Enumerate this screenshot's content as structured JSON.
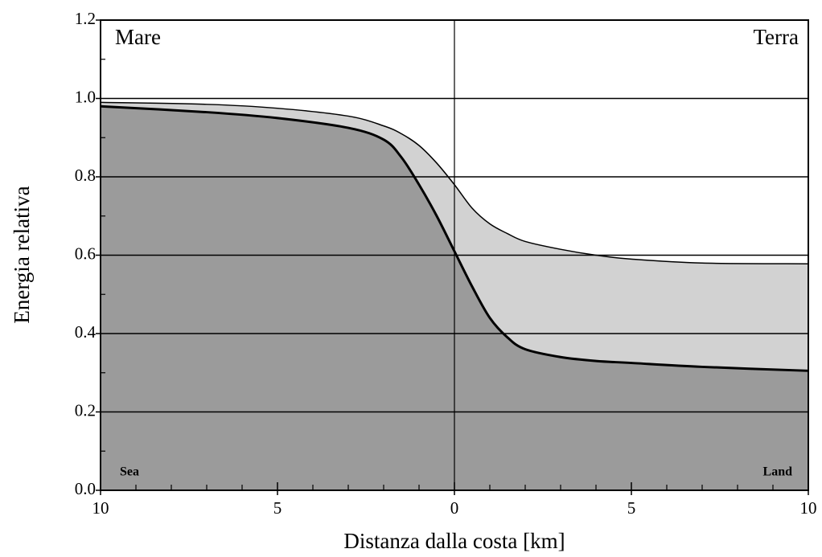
{
  "chart_data": {
    "type": "area",
    "xlabel": "Distanza dalla costa [km]",
    "ylabel": "Energia relativa",
    "annotations": [
      "Mare",
      "Terra",
      "Sea",
      "Land"
    ],
    "x": [
      -10,
      -7,
      -5,
      -3,
      -2,
      -1.5,
      -1,
      -0.5,
      0,
      0.5,
      1,
      1.5,
      2,
      3,
      4,
      5,
      7,
      10
    ],
    "series": [
      {
        "color": "#d2d2d2",
        "values": [
          0.99,
          0.985,
          0.975,
          0.955,
          0.93,
          0.91,
          0.88,
          0.835,
          0.78,
          0.72,
          0.68,
          0.655,
          0.635,
          0.615,
          0.6,
          0.59,
          0.58,
          0.578
        ]
      },
      {
        "color": "#9b9b9b",
        "values": [
          0.98,
          0.965,
          0.95,
          0.925,
          0.895,
          0.85,
          0.78,
          0.7,
          0.61,
          0.52,
          0.44,
          0.39,
          0.36,
          0.34,
          0.33,
          0.325,
          0.315,
          0.305
        ]
      }
    ],
    "xlim": [
      -10,
      10
    ],
    "ylim": [
      0,
      1.2
    ],
    "xticks": [
      {
        "value": -10,
        "label": "10"
      },
      {
        "value": -5,
        "label": "5"
      },
      0,
      5,
      10
    ],
    "yticks": [
      {
        "value": 0,
        "label": "0.0"
      },
      0.2,
      0.4,
      0.6,
      0.8,
      {
        "value": 1,
        "label": "1.0"
      },
      1.2
    ],
    "xminorticks": [
      -9,
      -8,
      -7,
      -6,
      -4,
      -3,
      -2,
      -1,
      1,
      2,
      3,
      4,
      6,
      7,
      8,
      9
    ],
    "yminorticks": [
      0.1,
      0.3,
      0.5,
      0.7,
      0.9,
      1.1
    ],
    "grid": true
  }
}
